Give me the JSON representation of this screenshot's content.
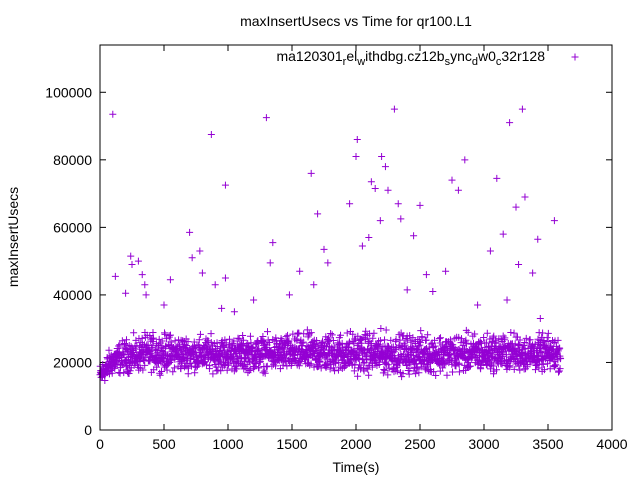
{
  "chart_data": {
    "type": "scatter",
    "title": "maxInsertUsecs vs Time for qr100.L1",
    "xlabel": "Time(s)",
    "ylabel": "maxInsertUsecs",
    "xlim": [
      0,
      4000
    ],
    "ylim": [
      0,
      114000
    ],
    "xticks": [
      0,
      500,
      1000,
      1500,
      2000,
      2500,
      3000,
      3500,
      4000
    ],
    "yticks": [
      0,
      20000,
      40000,
      60000,
      80000,
      100000
    ],
    "grid": false,
    "legend_position": "top-right",
    "series": [
      {
        "name": "ma120301_rel_withdbg.cz12b_sync_dw0_c32r128",
        "color": "#9400d3",
        "marker": "plus",
        "dense_band": [
          {
            "x": 0,
            "low": 12000,
            "high": 21000
          },
          {
            "x": 100,
            "low": 15000,
            "high": 27000
          },
          {
            "x": 200,
            "low": 15500,
            "high": 29000
          },
          {
            "x": 400,
            "low": 16000,
            "high": 31000
          },
          {
            "x": 800,
            "low": 16000,
            "high": 30000
          },
          {
            "x": 1200,
            "low": 16000,
            "high": 30000
          },
          {
            "x": 1600,
            "low": 16000,
            "high": 31000
          },
          {
            "x": 2000,
            "low": 15000,
            "high": 32000
          },
          {
            "x": 2400,
            "low": 15000,
            "high": 31000
          },
          {
            "x": 2800,
            "low": 15500,
            "high": 31000
          },
          {
            "x": 3200,
            "low": 16000,
            "high": 31000
          },
          {
            "x": 3600,
            "low": 16000,
            "high": 30000
          }
        ],
        "outliers": [
          [
            100,
            93500
          ],
          [
            120,
            45500
          ],
          [
            200,
            40500
          ],
          [
            240,
            51500
          ],
          [
            250,
            49000
          ],
          [
            300,
            50000
          ],
          [
            330,
            46000
          ],
          [
            350,
            43000
          ],
          [
            360,
            40000
          ],
          [
            500,
            37000
          ],
          [
            550,
            44500
          ],
          [
            700,
            58500
          ],
          [
            720,
            51000
          ],
          [
            780,
            53000
          ],
          [
            800,
            46500
          ],
          [
            870,
            87500
          ],
          [
            900,
            43000
          ],
          [
            950,
            36000
          ],
          [
            980,
            72500
          ],
          [
            980,
            45000
          ],
          [
            1050,
            35000
          ],
          [
            1200,
            38500
          ],
          [
            1300,
            92500
          ],
          [
            1350,
            55500
          ],
          [
            1330,
            49500
          ],
          [
            1480,
            40000
          ],
          [
            1650,
            76000
          ],
          [
            1670,
            43000
          ],
          [
            1700,
            64000
          ],
          [
            1750,
            53500
          ],
          [
            1780,
            49500
          ],
          [
            1950,
            67000
          ],
          [
            2000,
            81000
          ],
          [
            2010,
            86000
          ],
          [
            2050,
            54500
          ],
          [
            2100,
            57000
          ],
          [
            2120,
            73500
          ],
          [
            2150,
            71500
          ],
          [
            2200,
            81000
          ],
          [
            2230,
            78000
          ],
          [
            2250,
            71000
          ],
          [
            2300,
            95000
          ],
          [
            2330,
            67000
          ],
          [
            2350,
            62500
          ],
          [
            2400,
            41500
          ],
          [
            2450,
            57500
          ],
          [
            2500,
            66500
          ],
          [
            2550,
            46000
          ],
          [
            2600,
            41000
          ],
          [
            2700,
            47000
          ],
          [
            2750,
            74000
          ],
          [
            2800,
            71000
          ],
          [
            2850,
            80000
          ],
          [
            2950,
            37000
          ],
          [
            3050,
            53000
          ],
          [
            3100,
            74500
          ],
          [
            3150,
            58000
          ],
          [
            3200,
            91000
          ],
          [
            3250,
            66000
          ],
          [
            3270,
            49000
          ],
          [
            3300,
            95000
          ],
          [
            3320,
            69000
          ],
          [
            3380,
            46500
          ],
          [
            3420,
            56500
          ],
          [
            3440,
            33000
          ],
          [
            3550,
            62000
          ],
          [
            3180,
            38500
          ],
          [
            2190,
            62000
          ],
          [
            1560,
            47000
          ]
        ]
      }
    ]
  }
}
